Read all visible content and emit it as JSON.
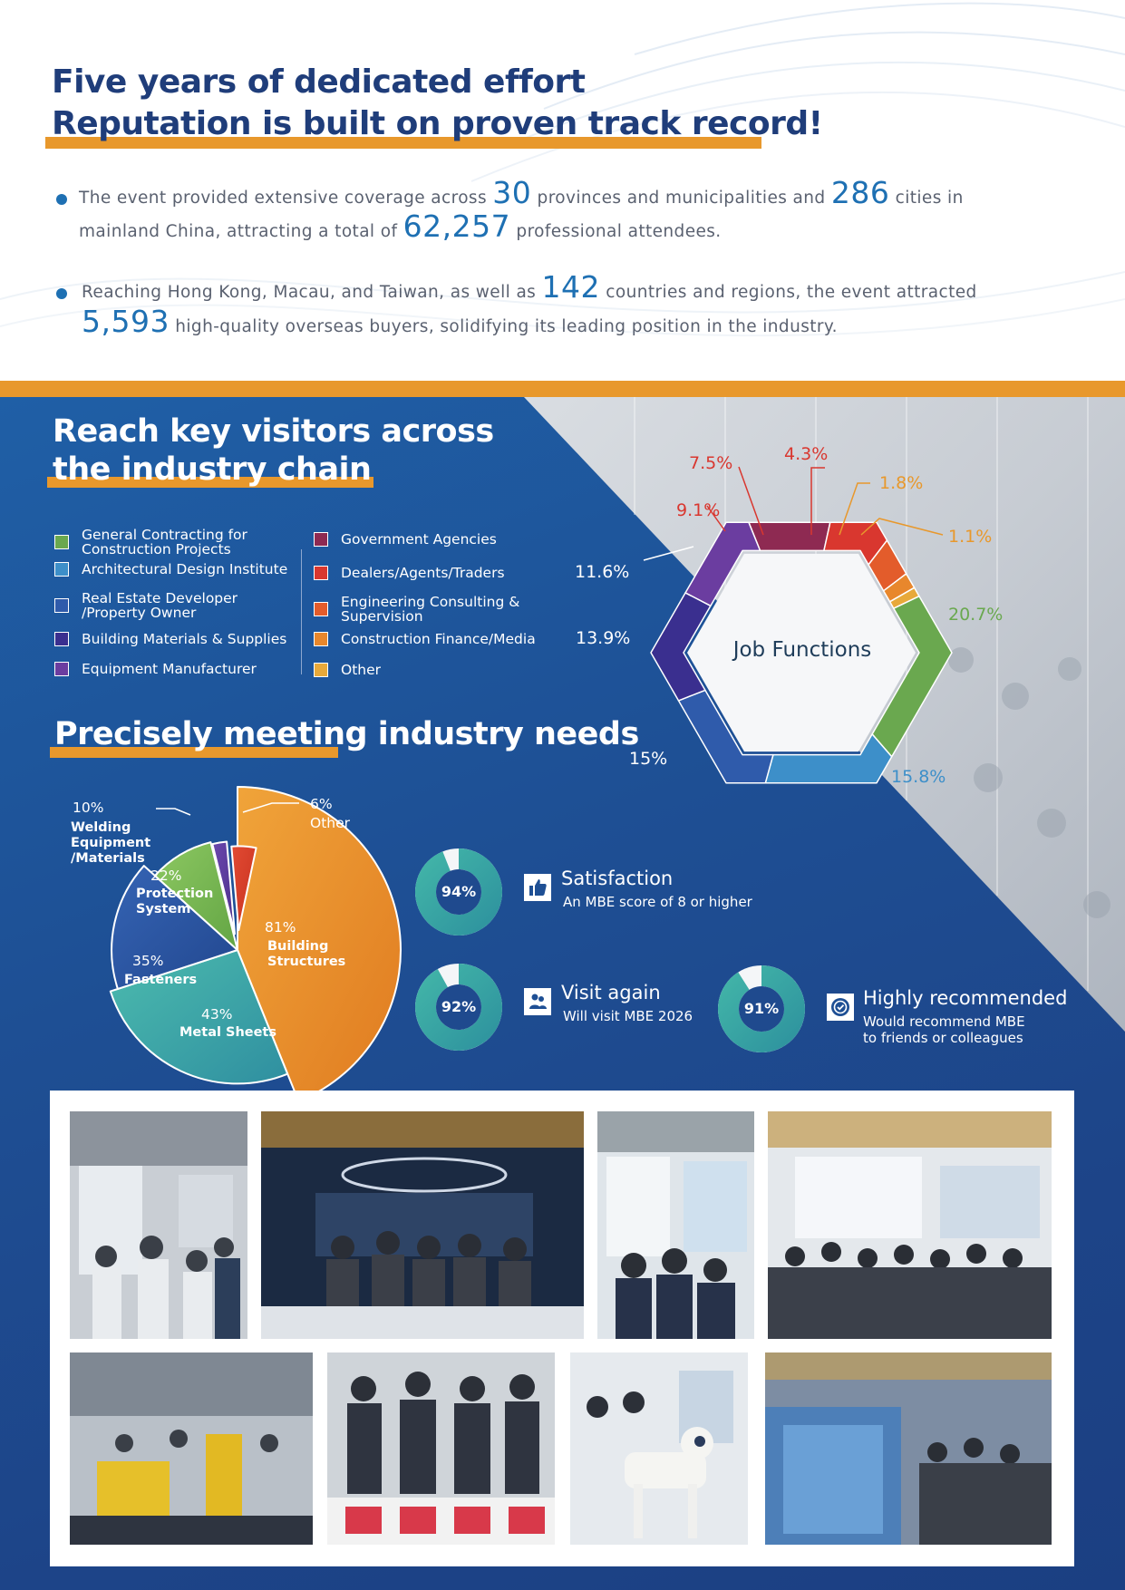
{
  "header": {
    "title_line1": "Five years of dedicated effort",
    "title_line2": "Reputation is built on proven track record!"
  },
  "stats_text": {
    "p1": {
      "a": "The event provided extensive coverage across ",
      "n1": "30",
      "b": " provinces and municipalities and ",
      "n2": "286",
      "c": " cities in",
      "d": "mainland China, attracting a total of ",
      "n3": "62,257",
      "e": " professional attendees."
    },
    "p2": {
      "a": "Reaching Hong Kong, Macau, and Taiwan, as well as ",
      "n1": "142",
      "b": " countries and regions, the event attracted",
      "n2": "5,593",
      "c": " high-quality overseas buyers, solidifying its leading position in the industry."
    }
  },
  "section_visitors": {
    "title_line1": "Reach key visitors across",
    "title_line2": "the industry chain",
    "legend_left": [
      {
        "label": "General Contracting for\nConstruction Projects",
        "color": "#6aa84f"
      },
      {
        "label": "Architectural Design Institute",
        "color": "#3d8fc9"
      },
      {
        "label": "Real Estate Developer\n/Property Owner",
        "color": "#2f5bab"
      },
      {
        "label": "Building Materials & Supplies",
        "color": "#3a2f8f"
      },
      {
        "label": "Equipment Manufacturer",
        "color": "#6b3da0"
      }
    ],
    "legend_right": [
      {
        "label": "Government Agencies",
        "color": "#8e2a52"
      },
      {
        "label": "Dealers/Agents/Traders",
        "color": "#d9372f"
      },
      {
        "label": "Engineering Consulting &\nSupervision",
        "color": "#e35c2b"
      },
      {
        "label": "Construction Finance/Media",
        "color": "#e8872c"
      },
      {
        "label": "Other",
        "color": "#e8a93a"
      }
    ]
  },
  "section_needs": {
    "title": "Precisely meeting industry needs"
  },
  "chart_data": [
    {
      "type": "pie",
      "title": "Job Functions",
      "categories": [
        "General Contracting for Construction Projects",
        "Architectural Design Institute",
        "Real Estate Developer /Property Owner",
        "Building Materials & Supplies",
        "Equipment Manufacturer",
        "Government Agencies",
        "Dealers/Agents/Traders",
        "Engineering Consulting & Supervision",
        "Construction Finance/Media",
        "Other"
      ],
      "values": [
        20.7,
        15.8,
        15,
        13.9,
        11.6,
        9.1,
        7.5,
        4.3,
        1.8,
        1.1
      ],
      "labels": [
        "20.7%",
        "15.8%",
        "15%",
        "13.9%",
        "11.6%",
        "9.1%",
        "7.5%",
        "4.3%",
        "1.8%",
        "1.1%"
      ],
      "colors": [
        "#6aa84f",
        "#3d8fc9",
        "#2f5bab",
        "#3a2f8f",
        "#6b3da0",
        "#8e2a52",
        "#d9372f",
        "#e35c2b",
        "#e8872c",
        "#e8a93a"
      ],
      "label_colors": [
        "#6aa84f",
        "#3d8fc9",
        "#ffffff",
        "#ffffff",
        "#ffffff",
        "#d9372f",
        "#d9372f",
        "#d9372f",
        "#e8982c",
        "#e8982c"
      ]
    },
    {
      "type": "pie",
      "categories": [
        "Building Structures",
        "Metal Sheets",
        "Fasteners",
        "Protection System",
        "Welding Equipment /Materials",
        "Other"
      ],
      "values": [
        81,
        43,
        35,
        22,
        10,
        6
      ],
      "labels": [
        "81%",
        "43%",
        "35%",
        "22%",
        "10%",
        "6%"
      ],
      "colors": [
        "#e9912c",
        "#3aa8a0",
        "#2f57a8",
        "#7cbc55",
        "#5b3b9e",
        "#d9402e"
      ]
    },
    {
      "type": "pie",
      "title": "Satisfaction",
      "subtitle": "An MBE score of 8 or higher",
      "values": [
        94
      ],
      "label": "94%"
    },
    {
      "type": "pie",
      "title": "Visit again",
      "subtitle": "Will visit MBE 2026",
      "values": [
        92
      ],
      "label": "92%"
    },
    {
      "type": "pie",
      "title": "Highly recommended",
      "subtitle": "Would recommend MBE\nto friends or colleagues",
      "values": [
        91
      ],
      "label": "91%"
    }
  ],
  "icons": {
    "satisfaction": "thumbs-up-icon",
    "visit": "people-icon",
    "recommend": "badge-icon"
  },
  "colors": {
    "accent_orange": "#e8982c",
    "navy": "#1f3d7a",
    "blue_number": "#1e70b3"
  }
}
